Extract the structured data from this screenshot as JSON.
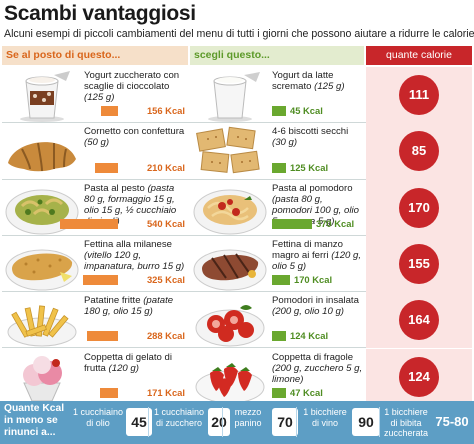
{
  "title": "Scambi vantaggiosi",
  "subtitle": "Alcuni esempi di piccoli cambiamenti del menu di tutti i giorni che possono aiutare a ridurre le calorie",
  "columns": {
    "left": "Se al posto di questo...",
    "middle": "scegli questo...",
    "right": "quante calorie risparmi"
  },
  "rows": [
    {
      "left_name": "Yogurt zuccherato con scaglie di cioccolato",
      "left_detail": "(125 g)",
      "left_kcal": "156 Kcal",
      "right_name": "Yogurt da latte scremato",
      "right_detail": "(125 g)",
      "right_kcal": "45 Kcal",
      "saved": "111",
      "left_icon": "chocolate-yogurt-cup-icon",
      "right_icon": "white-yogurt-cup-icon"
    },
    {
      "left_name": "Cornetto con confettura",
      "left_detail": "(50 g)",
      "left_kcal": "210 Kcal",
      "right_name": "4-6 biscotti secchi",
      "right_detail": "(30 g)",
      "right_kcal": "125 Kcal",
      "saved": "85",
      "left_icon": "croissant-icon",
      "right_icon": "crackers-icon"
    },
    {
      "left_name": "Pasta al pesto",
      "left_detail": "(pasta 80 g, formaggio 15 g, olio 15 g, ½ cucchiaio di pinoli)",
      "left_kcal": "540 Kcal",
      "right_name": "Pasta al pomodoro",
      "right_detail": "(pasta 80 g, pomodori 100 g, olio 5 g, grana 5 g)",
      "right_kcal": "370 Kcal",
      "saved": "170",
      "left_icon": "pesto-pasta-icon",
      "right_icon": "tomato-pasta-icon"
    },
    {
      "left_name": "Fettina alla milanese",
      "left_detail": "(vitello 120 g, impanatura, burro 15 g)",
      "left_kcal": "325 Kcal",
      "right_name": "Fettina di manzo magro ai ferri",
      "right_detail": "(120 g, olio 5 g)",
      "right_kcal": "170 Kcal",
      "saved": "155",
      "left_icon": "breaded-cutlet-icon",
      "right_icon": "grilled-beef-icon"
    },
    {
      "left_name": "Patatine fritte",
      "left_detail": "(patate 180 g, olio 15 g)",
      "left_kcal": "288 Kcal",
      "right_name": "Pomodori in insalata",
      "right_detail": "(200 g, olio 10 g)",
      "right_kcal": "124 Kcal",
      "saved": "164",
      "left_icon": "french-fries-icon",
      "right_icon": "tomato-salad-icon"
    },
    {
      "left_name": "Coppetta di gelato di frutta",
      "left_detail": "(120 g)",
      "left_kcal": "171 Kcal",
      "right_name": "Coppetta di fragole",
      "right_detail": "(200 g, zucchero 5 g, limone)",
      "right_kcal": "47 Kcal",
      "saved": "124",
      "left_icon": "ice-cream-cup-icon",
      "right_icon": "strawberries-bowl-icon"
    }
  ],
  "bottom": {
    "title": "Quante Kcal in meno se rinunci a...",
    "items": [
      {
        "label": "1 cucchiaino di olio",
        "value": "45"
      },
      {
        "label": "1 cucchiaino di zucchero",
        "value": "20"
      },
      {
        "label": "mezzo panino",
        "value": "70"
      },
      {
        "label": "1 bicchiere di vino",
        "value": "90"
      },
      {
        "label": "1 bicchiere di bibita zuccherata",
        "value": "75-80"
      }
    ]
  },
  "colors": {
    "orange": "#ee8a3a",
    "green": "#6aa82f",
    "red": "#c8262a",
    "bottom_bar": "#5d9ec5"
  }
}
